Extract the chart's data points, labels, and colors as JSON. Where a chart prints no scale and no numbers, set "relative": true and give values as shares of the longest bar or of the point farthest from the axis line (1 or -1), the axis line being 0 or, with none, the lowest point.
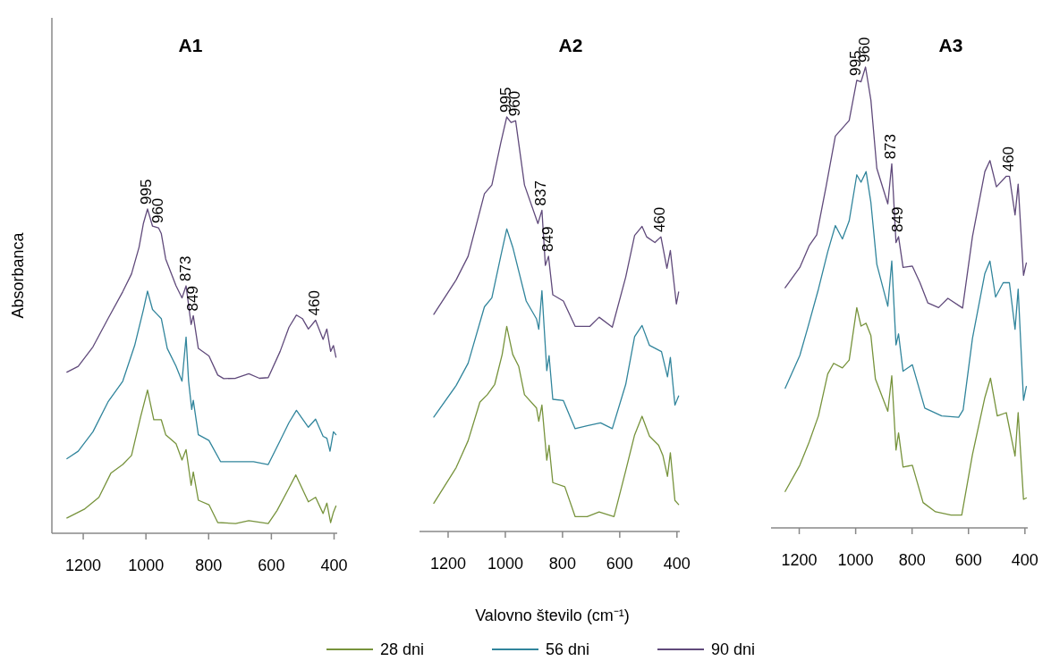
{
  "chart_data": [
    {
      "type": "line",
      "title": "A1",
      "ylabel": "Absorbanca",
      "relative": true,
      "xlim": [
        1300,
        390
      ],
      "xticks": [
        1200,
        1000,
        800,
        600,
        400
      ],
      "legend": false,
      "series": [
        {
          "color": "#77933c",
          "x": [
            1252,
            1197,
            1150,
            1112,
            1074,
            1046,
            1017,
            995,
            975,
            951,
            937,
            904,
            885,
            872,
            856,
            849,
            833,
            799,
            771,
            714,
            672,
            610,
            582,
            544,
            522,
            482,
            459,
            435,
            423,
            411,
            402,
            394
          ],
          "values": [
            0.047,
            0.074,
            0.111,
            0.185,
            0.212,
            0.24,
            0.359,
            0.442,
            0.35,
            0.35,
            0.304,
            0.276,
            0.226,
            0.258,
            0.148,
            0.189,
            0.102,
            0.088,
            0.033,
            0.03,
            0.039,
            0.03,
            0.07,
            0.139,
            0.18,
            0.097,
            0.111,
            0.061,
            0.093,
            0.033,
            0.065,
            0.084
          ]
        },
        {
          "color": "#31859c",
          "x": [
            1252,
            1216,
            1169,
            1121,
            1074,
            1036,
            1008,
            995,
            979,
            965,
            951,
            932,
            904,
            885,
            872,
            864,
            854,
            849,
            833,
            799,
            762,
            714,
            657,
            610,
            572,
            544,
            520,
            482,
            459,
            435,
            423,
            413,
            402,
            394
          ],
          "values": [
            0.23,
            0.253,
            0.313,
            0.405,
            0.469,
            0.579,
            0.69,
            0.747,
            0.69,
            0.676,
            0.662,
            0.57,
            0.515,
            0.469,
            0.605,
            0.469,
            0.382,
            0.41,
            0.304,
            0.286,
            0.221,
            0.221,
            0.221,
            0.212,
            0.286,
            0.341,
            0.379,
            0.327,
            0.352,
            0.299,
            0.293,
            0.253,
            0.313,
            0.304
          ]
        },
        {
          "color": "#604a7b",
          "x": [
            1252,
            1216,
            1169,
            1121,
            1074,
            1046,
            1022,
            1008,
            995,
            979,
            960,
            951,
            937,
            904,
            885,
            872,
            856,
            849,
            833,
            799,
            771,
            752,
            714,
            672,
            638,
            610,
            572,
            544,
            520,
            501,
            482,
            459,
            435,
            423,
            411,
            402,
            394
          ],
          "values": [
            0.497,
            0.515,
            0.575,
            0.662,
            0.745,
            0.8,
            0.882,
            0.956,
            1.0,
            0.947,
            0.942,
            0.924,
            0.846,
            0.763,
            0.726,
            0.763,
            0.644,
            0.671,
            0.57,
            0.547,
            0.488,
            0.477,
            0.478,
            0.492,
            0.478,
            0.48,
            0.561,
            0.635,
            0.673,
            0.662,
            0.63,
            0.657,
            0.598,
            0.63,
            0.561,
            0.579,
            0.543
          ]
        }
      ],
      "annotations": [
        {
          "text": "995",
          "x": 995,
          "y": 1.0
        },
        {
          "text": "960",
          "x": 960,
          "y": 0.942
        },
        {
          "text": "873",
          "x": 872,
          "y": 0.763
        },
        {
          "text": "849",
          "x": 849,
          "y": 0.671
        },
        {
          "text": "460",
          "x": 459,
          "y": 0.657
        }
      ]
    },
    {
      "type": "line",
      "title": "A2",
      "xlabel": "Valovno število (cm⁻¹)",
      "relative": true,
      "xlim": [
        1300,
        390
      ],
      "xticks": [
        1200,
        1000,
        800,
        600,
        400
      ],
      "legend": "bottom",
      "series": [
        {
          "name": "28 dni",
          "color": "#77933c",
          "x": [
            1250,
            1172,
            1130,
            1089,
            1063,
            1037,
            1011,
            995,
            974,
            953,
            933,
            891,
            883,
            872,
            855,
            847,
            834,
            792,
            756,
            714,
            672,
            620,
            579,
            548,
            522,
            496,
            464,
            449,
            433,
            423,
            407,
            394
          ],
          "values": [
            0.068,
            0.154,
            0.219,
            0.312,
            0.33,
            0.355,
            0.427,
            0.495,
            0.427,
            0.398,
            0.33,
            0.298,
            0.266,
            0.305,
            0.172,
            0.208,
            0.118,
            0.108,
            0.036,
            0.036,
            0.047,
            0.036,
            0.147,
            0.233,
            0.278,
            0.23,
            0.208,
            0.183,
            0.133,
            0.19,
            0.075,
            0.065
          ]
        },
        {
          "name": "56 dni",
          "color": "#31859c",
          "x": [
            1250,
            1172,
            1130,
            1073,
            1047,
            1016,
            995,
            974,
            953,
            927,
            891,
            883,
            872,
            855,
            847,
            834,
            797,
            756,
            714,
            667,
            626,
            579,
            548,
            522,
            496,
            454,
            433,
            423,
            407,
            394
          ],
          "values": [
            0.276,
            0.352,
            0.406,
            0.542,
            0.564,
            0.664,
            0.73,
            0.686,
            0.628,
            0.556,
            0.513,
            0.488,
            0.581,
            0.388,
            0.424,
            0.319,
            0.316,
            0.248,
            0.255,
            0.262,
            0.248,
            0.355,
            0.47,
            0.497,
            0.449,
            0.434,
            0.373,
            0.42,
            0.305,
            0.327
          ]
        },
        {
          "name": "90 dni",
          "color": "#604a7b",
          "x": [
            1250,
            1172,
            1130,
            1073,
            1047,
            1016,
            995,
            980,
            964,
            933,
            886,
            872,
            860,
            849,
            834,
            797,
            756,
            704,
            672,
            626,
            579,
            548,
            522,
            506,
            477,
            456,
            435,
            423,
            402,
            394
          ],
          "values": [
            0.524,
            0.607,
            0.664,
            0.815,
            0.836,
            0.937,
            1.0,
            0.987,
            0.991,
            0.836,
            0.743,
            0.775,
            0.642,
            0.664,
            0.571,
            0.556,
            0.495,
            0.495,
            0.517,
            0.493,
            0.614,
            0.714,
            0.736,
            0.711,
            0.697,
            0.711,
            0.635,
            0.678,
            0.549,
            0.578
          ]
        }
      ],
      "annotations": [
        {
          "text": "995",
          "x": 995,
          "y": 1.0
        },
        {
          "text": "960",
          "x": 964,
          "y": 0.991
        },
        {
          "text": "837",
          "x": 872,
          "y": 0.775
        },
        {
          "text": "849",
          "x": 849,
          "y": 0.664
        },
        {
          "text": "460",
          "x": 456,
          "y": 0.711
        }
      ]
    },
    {
      "type": "line",
      "title": "A3",
      "relative": true,
      "xlim": [
        1300,
        390
      ],
      "xticks": [
        1200,
        1000,
        800,
        600,
        400
      ],
      "legend": false,
      "series": [
        {
          "color": "#77933c",
          "x": [
            1250,
            1198,
            1165,
            1132,
            1099,
            1078,
            1047,
            1023,
            996,
            981,
            963,
            946,
            930,
            886,
            872,
            857,
            848,
            832,
            799,
            761,
            717,
            662,
            624,
            586,
            542,
            522,
            498,
            466,
            435,
            424,
            405,
            395
          ],
          "values": [
            0.079,
            0.136,
            0.186,
            0.243,
            0.334,
            0.357,
            0.347,
            0.364,
            0.478,
            0.438,
            0.444,
            0.417,
            0.323,
            0.253,
            0.33,
            0.169,
            0.206,
            0.132,
            0.136,
            0.055,
            0.035,
            0.028,
            0.028,
            0.159,
            0.283,
            0.325,
            0.243,
            0.25,
            0.156,
            0.25,
            0.062,
            0.065
          ]
        },
        {
          "color": "#31859c",
          "x": [
            1250,
            1198,
            1170,
            1132,
            1099,
            1072,
            1047,
            1023,
            996,
            981,
            963,
            946,
            925,
            886,
            872,
            857,
            848,
            832,
            799,
            755,
            695,
            635,
            619,
            586,
            542,
            524,
            504,
            477,
            455,
            435,
            424,
            405,
            395
          ],
          "values": [
            0.303,
            0.374,
            0.434,
            0.518,
            0.599,
            0.656,
            0.627,
            0.666,
            0.766,
            0.75,
            0.773,
            0.706,
            0.572,
            0.481,
            0.579,
            0.397,
            0.421,
            0.34,
            0.354,
            0.26,
            0.243,
            0.24,
            0.256,
            0.411,
            0.552,
            0.579,
            0.501,
            0.532,
            0.532,
            0.431,
            0.518,
            0.277,
            0.307
          ]
        },
        {
          "color": "#604a7b",
          "x": [
            1250,
            1198,
            1165,
            1138,
            1105,
            1072,
            1023,
            996,
            981,
            965,
            946,
            925,
            886,
            872,
            857,
            848,
            832,
            799,
            772,
            744,
            706,
            673,
            621,
            586,
            542,
            524,
            501,
            466,
            455,
            435,
            424,
            405,
            395
          ],
          "values": [
            0.521,
            0.565,
            0.612,
            0.636,
            0.74,
            0.85,
            0.884,
            0.971,
            0.968,
            1.0,
            0.928,
            0.78,
            0.703,
            0.79,
            0.619,
            0.632,
            0.565,
            0.568,
            0.532,
            0.488,
            0.478,
            0.498,
            0.477,
            0.632,
            0.773,
            0.797,
            0.74,
            0.763,
            0.763,
            0.679,
            0.746,
            0.548,
            0.575
          ]
        }
      ],
      "annotations": [
        {
          "text": "995",
          "x": 996,
          "y": 0.971
        },
        {
          "text": "960",
          "x": 965,
          "y": 1.0
        },
        {
          "text": "873",
          "x": 872,
          "y": 0.79
        },
        {
          "text": "849",
          "x": 848,
          "y": 0.632
        },
        {
          "text": "460",
          "x": 455,
          "y": 0.763
        }
      ]
    }
  ]
}
